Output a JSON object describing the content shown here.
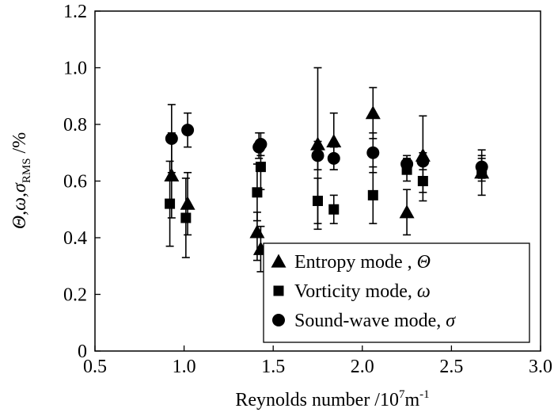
{
  "chart_data": {
    "type": "scatter",
    "title": "",
    "xlabel": {
      "main": "Reynolds number /10",
      "sup": "7",
      "unit": "m",
      "unit_sup": "-1"
    },
    "ylabel": {
      "symbols": "Θ,ω,σ",
      "sub": "RMS",
      "unit": " /%"
    },
    "xlim": [
      0.5,
      3.0
    ],
    "ylim": [
      0,
      1.2
    ],
    "x_ticks": [
      "0.5",
      "1.0",
      "1.5",
      "2.0",
      "2.5",
      "3.0"
    ],
    "y_ticks": [
      "0",
      "0.2",
      "0.4",
      "0.6",
      "0.8",
      "1.0",
      "1.2"
    ],
    "grid": false,
    "legend_position": "bottom-right",
    "series": [
      {
        "name": "Entropy mode , Θ",
        "marker": "triangle",
        "points": [
          {
            "x": 0.93,
            "y": 0.62,
            "lo": 0.47,
            "hi": 0.77
          },
          {
            "x": 1.02,
            "y": 0.52,
            "lo": 0.41,
            "hi": 0.63
          },
          {
            "x": 1.41,
            "y": 0.42,
            "lo": 0.32,
            "hi": 0.49
          },
          {
            "x": 1.43,
            "y": 0.36,
            "lo": 0.28,
            "hi": 0.44
          },
          {
            "x": 1.75,
            "y": 0.73,
            "lo": 0.43,
            "hi": 1.0
          },
          {
            "x": 1.84,
            "y": 0.74,
            "lo": 0.64,
            "hi": 0.84
          },
          {
            "x": 2.06,
            "y": 0.84,
            "lo": 0.75,
            "hi": 0.93
          },
          {
            "x": 2.25,
            "y": 0.49,
            "lo": 0.41,
            "hi": 0.57
          },
          {
            "x": 2.34,
            "y": 0.69,
            "lo": 0.56,
            "hi": 0.83
          },
          {
            "x": 2.67,
            "y": 0.63,
            "lo": 0.55,
            "hi": 0.71
          }
        ]
      },
      {
        "name": "Vorticity mode, ω",
        "marker": "square",
        "points": [
          {
            "x": 0.92,
            "y": 0.52,
            "lo": 0.37,
            "hi": 0.67
          },
          {
            "x": 1.01,
            "y": 0.47,
            "lo": 0.33,
            "hi": 0.61
          },
          {
            "x": 1.41,
            "y": 0.56,
            "lo": 0.46,
            "hi": 0.66
          },
          {
            "x": 1.43,
            "y": 0.65,
            "lo": 0.57,
            "hi": 0.73
          },
          {
            "x": 1.75,
            "y": 0.53,
            "lo": 0.45,
            "hi": 0.61
          },
          {
            "x": 1.84,
            "y": 0.5,
            "lo": 0.45,
            "hi": 0.55
          },
          {
            "x": 2.06,
            "y": 0.55,
            "lo": 0.45,
            "hi": 0.65
          },
          {
            "x": 2.25,
            "y": 0.64,
            "lo": 0.6,
            "hi": 0.68
          },
          {
            "x": 2.34,
            "y": 0.6,
            "lo": 0.53,
            "hi": 0.67
          },
          {
            "x": 2.67,
            "y": 0.64,
            "lo": 0.6,
            "hi": 0.68
          }
        ]
      },
      {
        "name": "Sound-wave mode, σ",
        "marker": "circle",
        "points": [
          {
            "x": 0.93,
            "y": 0.75,
            "lo": 0.63,
            "hi": 0.87
          },
          {
            "x": 1.02,
            "y": 0.78,
            "lo": 0.72,
            "hi": 0.84
          },
          {
            "x": 1.42,
            "y": 0.72,
            "lo": 0.68,
            "hi": 0.77
          },
          {
            "x": 1.43,
            "y": 0.73,
            "lo": 0.69,
            "hi": 0.77
          },
          {
            "x": 1.75,
            "y": 0.69,
            "lo": 0.64,
            "hi": 0.74
          },
          {
            "x": 1.84,
            "y": 0.68,
            "lo": 0.64,
            "hi": 0.72
          },
          {
            "x": 2.06,
            "y": 0.7,
            "lo": 0.63,
            "hi": 0.77
          },
          {
            "x": 2.25,
            "y": 0.66,
            "lo": 0.63,
            "hi": 0.69
          },
          {
            "x": 2.34,
            "y": 0.67,
            "lo": 0.64,
            "hi": 0.7
          },
          {
            "x": 2.67,
            "y": 0.65,
            "lo": 0.61,
            "hi": 0.69
          }
        ]
      }
    ]
  }
}
